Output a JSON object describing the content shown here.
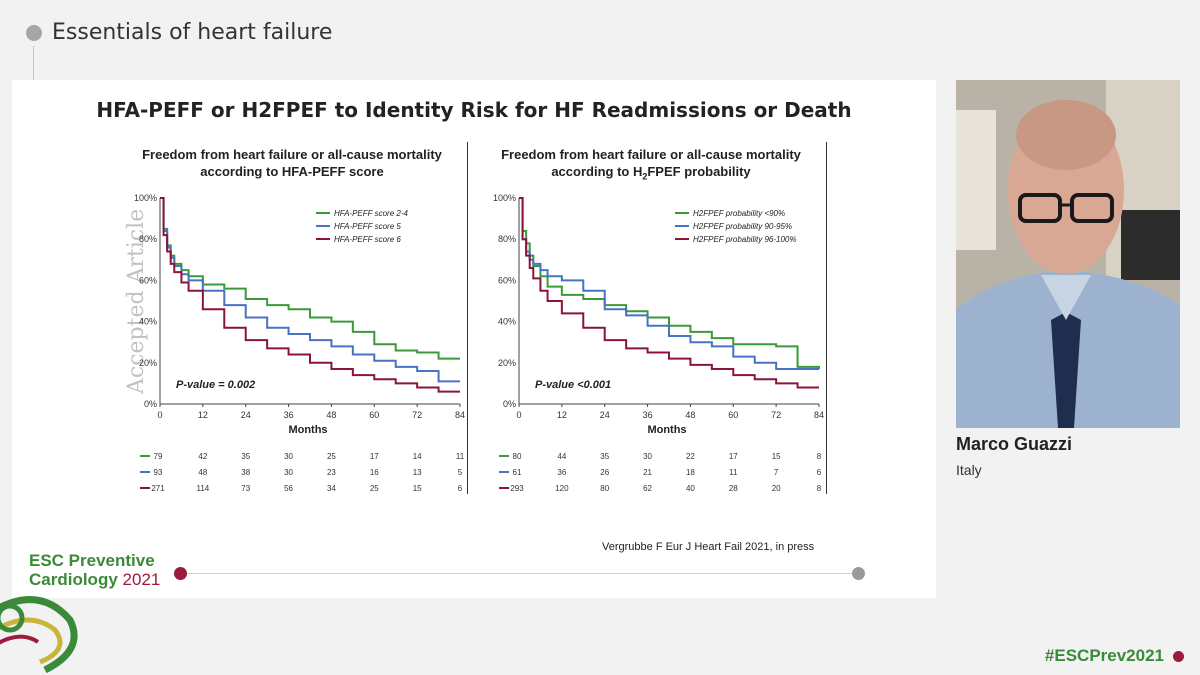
{
  "header": {
    "title": "Essentials of heart failure"
  },
  "slide": {
    "title": "HFA-PEFF or H2FPEF to Identity Risk for HF Readmissions or Death",
    "citation": "Vergrubbe F Eur J Heart Fail 2021, in press"
  },
  "speaker": {
    "name": "Marco Guazzi",
    "country": "Italy"
  },
  "brand": {
    "line1": "ESC Preventive",
    "line2": "Cardiology",
    "year": "2021"
  },
  "hashtag": "#ESCPrev2021",
  "colors": {
    "green": "#3a9a3a",
    "blue": "#4a72c4",
    "maroon": "#8a1538",
    "brand_green": "#3a8a3a",
    "brand_red": "#9c1a3c"
  },
  "chart_data": [
    {
      "type": "line",
      "title_line1": "Freedom from heart failure or all-cause mortality",
      "title_line2": "according to HFA-PEFF score",
      "xlabel": "Months",
      "x_ticks": [
        0,
        12,
        24,
        36,
        48,
        60,
        72,
        84
      ],
      "y_ticks": [
        "0%",
        "20%",
        "40%",
        "60%",
        "80%",
        "100%"
      ],
      "ylim": [
        0,
        100
      ],
      "xlim": [
        0,
        84
      ],
      "annotation": "P-value = 0.002",
      "watermark": "Accepted Article",
      "series": [
        {
          "name": "HFA-PEFF score 2-4",
          "color": "#3a9a3a",
          "x": [
            0,
            1,
            2,
            3,
            4,
            6,
            8,
            12,
            18,
            24,
            30,
            36,
            42,
            48,
            54,
            60,
            66,
            72,
            78,
            84
          ],
          "y": [
            100,
            85,
            77,
            72,
            68,
            65,
            62,
            58,
            56,
            51,
            48,
            46,
            42,
            40,
            35,
            29,
            26,
            25,
            22,
            22
          ],
          "at_risk": [
            79,
            42,
            35,
            30,
            25,
            17,
            14,
            11
          ]
        },
        {
          "name": "HFA-PEFF score 5",
          "color": "#4a72c4",
          "x": [
            0,
            1,
            2,
            3,
            4,
            6,
            8,
            12,
            18,
            24,
            30,
            36,
            42,
            48,
            54,
            60,
            66,
            72,
            78,
            84
          ],
          "y": [
            100,
            84,
            76,
            71,
            67,
            63,
            60,
            55,
            48,
            42,
            37,
            34,
            31,
            28,
            24,
            21,
            18,
            16,
            11,
            11
          ],
          "at_risk": [
            93,
            48,
            38,
            30,
            23,
            16,
            13,
            5
          ]
        },
        {
          "name": "HFA-PEFF score 6",
          "color": "#8a1538",
          "x": [
            0,
            1,
            2,
            3,
            4,
            6,
            8,
            12,
            18,
            24,
            30,
            36,
            42,
            48,
            54,
            60,
            66,
            72,
            78,
            84
          ],
          "y": [
            100,
            82,
            74,
            68,
            64,
            59,
            55,
            46,
            37,
            31,
            27,
            24,
            20,
            17,
            14,
            12,
            10,
            8,
            6,
            6
          ],
          "at_risk": [
            271,
            114,
            73,
            56,
            34,
            25,
            15,
            6
          ]
        }
      ]
    },
    {
      "type": "line",
      "title_line1": "Freedom from heart failure or all-cause mortality",
      "title_prefix": "according to H",
      "title_sub": "2",
      "title_suffix": "FPEF probability",
      "xlabel": "Months",
      "x_ticks": [
        0,
        12,
        24,
        36,
        48,
        60,
        72,
        84
      ],
      "y_ticks": [
        "0%",
        "20%",
        "40%",
        "60%",
        "80%",
        "100%"
      ],
      "ylim": [
        0,
        100
      ],
      "xlim": [
        0,
        84
      ],
      "annotation": "P-value <0.001",
      "series": [
        {
          "name": "H2FPEF probability <90%",
          "color": "#3a9a3a",
          "x": [
            0,
            1,
            2,
            3,
            4,
            6,
            8,
            12,
            18,
            24,
            30,
            36,
            42,
            48,
            54,
            60,
            66,
            72,
            78,
            84
          ],
          "y": [
            100,
            84,
            78,
            72,
            67,
            62,
            57,
            53,
            51,
            48,
            45,
            42,
            38,
            35,
            32,
            29,
            29,
            28,
            18,
            17
          ],
          "at_risk": [
            80,
            44,
            35,
            30,
            22,
            17,
            15,
            8
          ]
        },
        {
          "name": "H2FPEF probability 90-95%",
          "color": "#4a72c4",
          "x": [
            0,
            1,
            2,
            3,
            4,
            6,
            8,
            12,
            18,
            24,
            30,
            36,
            42,
            48,
            54,
            60,
            66,
            72,
            78,
            84
          ],
          "y": [
            100,
            80,
            74,
            70,
            68,
            65,
            62,
            60,
            55,
            46,
            43,
            38,
            33,
            30,
            28,
            23,
            20,
            17,
            17,
            17
          ],
          "at_risk": [
            61,
            36,
            26,
            21,
            18,
            11,
            7,
            6
          ]
        },
        {
          "name": "H2FPEF probability 96-100%",
          "color": "#8a1538",
          "x": [
            0,
            1,
            2,
            3,
            4,
            6,
            8,
            12,
            18,
            24,
            30,
            36,
            42,
            48,
            54,
            60,
            66,
            72,
            78,
            84
          ],
          "y": [
            100,
            80,
            72,
            66,
            61,
            55,
            50,
            44,
            37,
            31,
            27,
            25,
            22,
            19,
            17,
            14,
            12,
            10,
            8,
            8
          ],
          "at_risk": [
            293,
            120,
            80,
            62,
            40,
            28,
            20,
            8
          ]
        }
      ]
    }
  ]
}
